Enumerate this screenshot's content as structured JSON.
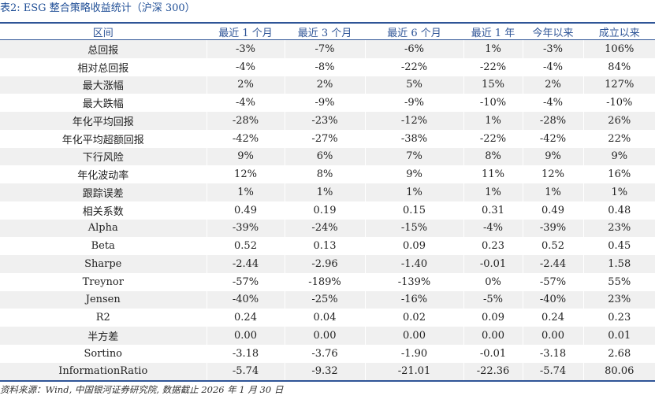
{
  "title": "表2: ESG 整合策略收益统计（沪深 300）",
  "table": {
    "headers": [
      "区间",
      "最近 1 个月",
      "最近 3 个月",
      "最近 6 个月",
      "最近 1 年",
      "今年以来",
      "成立以来"
    ],
    "rows": [
      [
        "总回报",
        "-3%",
        "-7%",
        "-6%",
        "1%",
        "-3%",
        "106%"
      ],
      [
        "相对总回报",
        "-4%",
        "-8%",
        "-22%",
        "-22%",
        "-4%",
        "84%"
      ],
      [
        "最大涨幅",
        "2%",
        "2%",
        "5%",
        "15%",
        "2%",
        "127%"
      ],
      [
        "最大跌幅",
        "-4%",
        "-9%",
        "-9%",
        "-10%",
        "-4%",
        "-10%"
      ],
      [
        "年化平均回报",
        "-28%",
        "-23%",
        "-12%",
        "1%",
        "-28%",
        "26%"
      ],
      [
        "年化平均超额回报",
        "-42%",
        "-27%",
        "-38%",
        "-22%",
        "-42%",
        "22%"
      ],
      [
        "下行风险",
        "9%",
        "6%",
        "7%",
        "8%",
        "9%",
        "9%"
      ],
      [
        "年化波动率",
        "12%",
        "8%",
        "9%",
        "11%",
        "12%",
        "16%"
      ],
      [
        "跟踪误差",
        "1%",
        "1%",
        "1%",
        "1%",
        "1%",
        "1%"
      ],
      [
        "相关系数",
        "0.49",
        "0.19",
        "0.15",
        "0.31",
        "0.49",
        "0.48"
      ],
      [
        "Alpha",
        "-39%",
        "-24%",
        "-15%",
        "-4%",
        "-39%",
        "23%"
      ],
      [
        "Beta",
        "0.52",
        "0.13",
        "0.09",
        "0.23",
        "0.52",
        "0.45"
      ],
      [
        "Sharpe",
        "-2.44",
        "-2.96",
        "-1.40",
        "-0.01",
        "-2.44",
        "1.58"
      ],
      [
        "Treynor",
        "-57%",
        "-189%",
        "-139%",
        "0%",
        "-57%",
        "55%"
      ],
      [
        "Jensen",
        "-40%",
        "-25%",
        "-16%",
        "-5%",
        "-40%",
        "23%"
      ],
      [
        "R2",
        "0.24",
        "0.04",
        "0.02",
        "0.09",
        "0.24",
        "0.23"
      ],
      [
        "半方差",
        "0.00",
        "0.00",
        "0.00",
        "0.00",
        "0.00",
        "0.01"
      ],
      [
        "Sortino",
        "-3.18",
        "-3.76",
        "-1.90",
        "-0.01",
        "-3.18",
        "2.68"
      ],
      [
        "InformationRatio",
        "-5.74",
        "-9.32",
        "-21.01",
        "-22.36",
        "-5.74",
        "80.06"
      ]
    ]
  },
  "source": "资料来源：Wind, 中国银河证券研究院, 数据截止 2026 年 1 月 30 日",
  "colors": {
    "accent": "#2f5597",
    "stripe": "#f0f0f0"
  }
}
